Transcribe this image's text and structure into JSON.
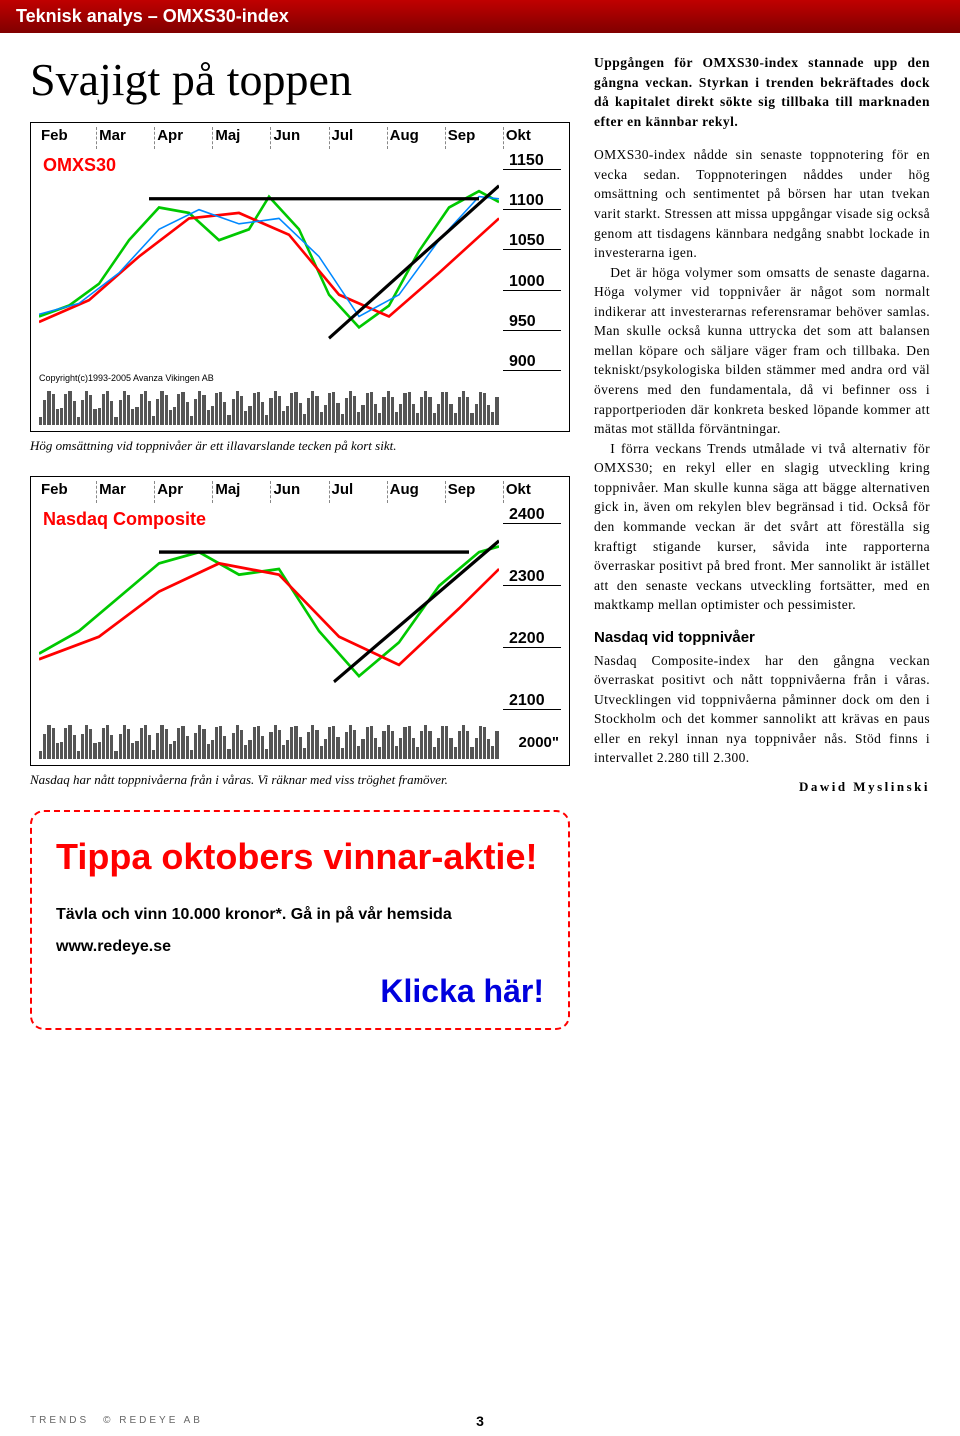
{
  "header": {
    "title": "Teknisk analys – OMXS30-index"
  },
  "mainTitle": "Svajigt på toppen",
  "chart1": {
    "name": "OMXS30",
    "months": [
      "Feb",
      "Mar",
      "Apr",
      "Maj",
      "Jun",
      "Jul",
      "Aug",
      "Sep",
      "Okt"
    ],
    "yticks": [
      "1150",
      "1100",
      "1050",
      "1000",
      "950",
      "900"
    ],
    "copyright": "Copyright(c)1993-2005 Avanza Vikingen AB",
    "lineColors": {
      "green": "#00c800",
      "red": "#ff0000",
      "blue": "#0088ff",
      "black": "#000000"
    },
    "caption": "Hög omsättning vid toppnivåer är ett illavarslande tecken på kort sikt."
  },
  "chart2": {
    "name": "Nasdaq Composite",
    "months": [
      "Feb",
      "Mar",
      "Apr",
      "Maj",
      "Jun",
      "Jul",
      "Aug",
      "Sep",
      "Okt"
    ],
    "yticks": [
      "2400",
      "2300",
      "2200",
      "2100"
    ],
    "volLabel": "2000\"",
    "caption": "Nasdaq har nått toppnivåerna från i våras. Vi räknar med viss tröghet framöver."
  },
  "promo": {
    "title": "Tippa oktobers vinnar-aktie!",
    "sub": "Tävla och vinn 10.000 kronor*. Gå in på vår hemsida www.redeye.se",
    "link": "Klicka här!"
  },
  "article": {
    "intro": "Uppgången för OMXS30-index stannade upp den gångna veckan. Styrkan i trenden bekräftades dock då kapitalet direkt sökte sig tillbaka till marknaden efter en kännbar rekyl.",
    "p1": "OMXS30-index nådde sin senaste toppnotering för en vecka sedan. Toppnoteringen nåddes under hög omsättning och sentimentet på börsen har utan tvekan varit starkt. Stressen att missa uppgångar visade sig också genom att tisdagens kännbara nedgång snabbt lockade in investerarna igen.",
    "p2": "Det är höga volymer som omsatts de senaste dagarna. Höga volymer vid toppnivåer är något som normalt indikerar att investerarnas referensramar behöver samlas. Man skulle också kunna uttrycka det som att balansen mellan köpare och säljare väger fram och tillbaka. Den tekniskt/psykologiska bilden stämmer med andra ord väl överens med den fundamentala, då vi befinner oss i rapportperioden där konkreta besked löpande kommer att mätas mot ställda förväntningar.",
    "p3": "I förra veckans Trends utmålade vi två alternativ för OMXS30; en rekyl eller en slagig utveckling kring toppnivåer. Man skulle kunna säga att bägge alternativen gick in, även om rekylen blev begränsad i tid. Också för den kommande veckan är det svårt att föreställa sig kraftigt stigande kurser, såvida inte rapporterna överraskar positivt på bred front. Mer sannolikt är istället att den senaste veckans utveckling fortsätter, med en maktkamp mellan optimister och pessimister.",
    "subheading": "Nasdaq vid toppnivåer",
    "p4": "Nasdaq Composite-index har den gångna veckan överraskat positivt och nått toppnivåerna från i våras. Utvecklingen vid toppnivåerna påminner dock om den i Stockholm och det kommer sannolikt att krävas en paus eller en rekyl innan nya toppnivåer nås. Stöd finns i intervallet 2.280 till 2.300.",
    "author": "Dawid Myslinski"
  },
  "footer": {
    "left1": "TRENDS",
    "left2": "© REDEYE AB",
    "page": "3"
  }
}
